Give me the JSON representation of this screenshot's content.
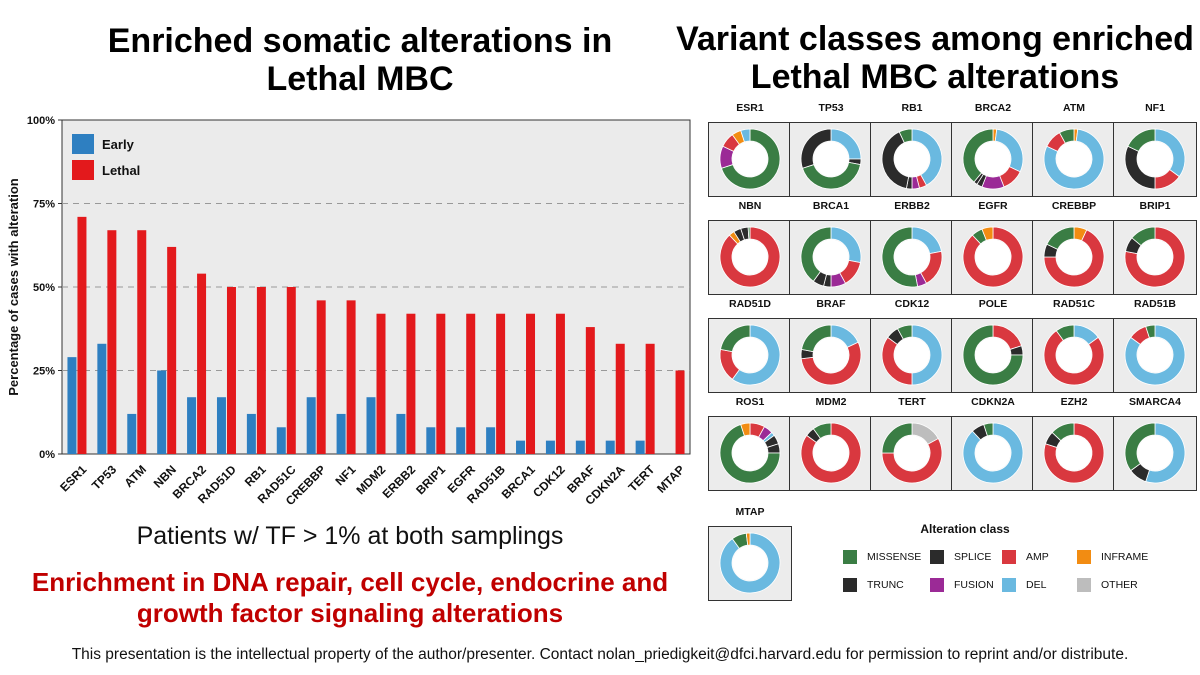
{
  "titles": {
    "left": "Enriched somatic alterations in Lethal MBC",
    "right": "Variant classes among enriched Lethal MBC alterations"
  },
  "subtitle": "Patients w/ TF > 1% at both samplings",
  "highlight": "Enrichment in DNA repair, cell cycle, endocrine and growth factor signaling alterations",
  "footer": "This presentation is the intellectual property of the author/presenter. Contact nolan_priedigkeit@dfci.harvard.edu for permission to reprint and/or distribute.",
  "colors": {
    "early": "#2e7fc1",
    "lethal": "#e3191c",
    "panel": "#ebebeb",
    "MISSENSE": "#3a7d44",
    "TRUNC": "#2b2b2b",
    "SPLICE": "#2b2b2b",
    "FUSION": "#9b2a96",
    "AMP": "#d9383f",
    "DEL": "#6ab9e0",
    "INFRAME": "#f28c12",
    "OTHER": "#bdbdbd"
  },
  "chart_data": [
    {
      "type": "bar",
      "title": "Enriched somatic alterations in Lethal MBC",
      "xlabel": "",
      "ylabel": "Percentage of cases with alteration",
      "ylim": [
        0,
        100
      ],
      "yticks": [
        "0%",
        "25%",
        "50%",
        "75%",
        "100%"
      ],
      "ytick_values": [
        0,
        25,
        50,
        75,
        100
      ],
      "grid": "dashed horizontal",
      "legend_position": "top-left",
      "categories": [
        "ESR1",
        "TP53",
        "ATM",
        "NBN",
        "BRCA2",
        "RAD51D",
        "RB1",
        "RAD51C",
        "CREBBP",
        "NF1",
        "MDM2",
        "ERBB2",
        "BRIP1",
        "EGFR",
        "RAD51B",
        "BRCA1",
        "CDK12",
        "BRAF",
        "CDKN2A",
        "TERT",
        "MTAP"
      ],
      "series": [
        {
          "name": "Early",
          "values": [
            29,
            33,
            12,
            25,
            17,
            17,
            12,
            8,
            17,
            12,
            17,
            12,
            8,
            8,
            8,
            4,
            4,
            4,
            4,
            4,
            0
          ]
        },
        {
          "name": "Lethal",
          "values": [
            71,
            67,
            67,
            62,
            54,
            50,
            50,
            50,
            46,
            46,
            42,
            42,
            42,
            42,
            42,
            42,
            42,
            38,
            33,
            33,
            25
          ]
        }
      ]
    },
    {
      "type": "pie",
      "title": "Variant classes among enriched Lethal MBC alterations",
      "legend_title": "Alteration class",
      "legend": [
        [
          "MISSENSE",
          "SPLICE",
          "AMP",
          "INFRAME"
        ],
        [
          "TRUNC",
          "FUSION",
          "DEL",
          "OTHER"
        ]
      ],
      "genes": [
        {
          "gene": "ESR1",
          "slices": [
            [
              "MISSENSE",
              0.7
            ],
            [
              "FUSION",
              0.12
            ],
            [
              "AMP",
              0.08
            ],
            [
              "INFRAME",
              0.05
            ],
            [
              "DEL",
              0.05
            ]
          ]
        },
        {
          "gene": "TP53",
          "slices": [
            [
              "DEL",
              0.25
            ],
            [
              "SPLICE",
              0.03
            ],
            [
              "MISSENSE",
              0.42
            ],
            [
              "TRUNC",
              0.3
            ]
          ]
        },
        {
          "gene": "RB1",
          "slices": [
            [
              "DEL",
              0.42
            ],
            [
              "AMP",
              0.04
            ],
            [
              "FUSION",
              0.04
            ],
            [
              "SPLICE",
              0.03
            ],
            [
              "TRUNC",
              0.4
            ],
            [
              "MISSENSE",
              0.07
            ]
          ]
        },
        {
          "gene": "BRCA2",
          "slices": [
            [
              "INFRAME",
              0.02
            ],
            [
              "DEL",
              0.3
            ],
            [
              "AMP",
              0.12
            ],
            [
              "FUSION",
              0.12
            ],
            [
              "SPLICE",
              0.03
            ],
            [
              "TRUNC",
              0.02
            ],
            [
              "MISSENSE",
              0.39
            ]
          ]
        },
        {
          "gene": "ATM",
          "slices": [
            [
              "INFRAME",
              0.02
            ],
            [
              "DEL",
              0.8
            ],
            [
              "AMP",
              0.1
            ],
            [
              "MISSENSE",
              0.08
            ]
          ]
        },
        {
          "gene": "NF1",
          "slices": [
            [
              "DEL",
              0.35
            ],
            [
              "AMP",
              0.15
            ],
            [
              "TRUNC",
              0.32
            ],
            [
              "MISSENSE",
              0.18
            ]
          ]
        },
        {
          "gene": "NBN",
          "slices": [
            [
              "AMP",
              0.88
            ],
            [
              "INFRAME",
              0.03
            ],
            [
              "SPLICE",
              0.04
            ],
            [
              "TRUNC",
              0.04
            ],
            [
              "MISSENSE",
              0.01
            ]
          ]
        },
        {
          "gene": "BRCA1",
          "slices": [
            [
              "DEL",
              0.28
            ],
            [
              "AMP",
              0.14
            ],
            [
              "FUSION",
              0.08
            ],
            [
              "SPLICE",
              0.04
            ],
            [
              "TRUNC",
              0.06
            ],
            [
              "MISSENSE",
              0.4
            ]
          ]
        },
        {
          "gene": "ERBB2",
          "slices": [
            [
              "DEL",
              0.22
            ],
            [
              "AMP",
              0.2
            ],
            [
              "FUSION",
              0.05
            ],
            [
              "MISSENSE",
              0.53
            ]
          ]
        },
        {
          "gene": "EGFR",
          "slices": [
            [
              "AMP",
              0.88
            ],
            [
              "MISSENSE",
              0.06
            ],
            [
              "INFRAME",
              0.06
            ]
          ]
        },
        {
          "gene": "CREBBP",
          "slices": [
            [
              "INFRAME",
              0.07
            ],
            [
              "AMP",
              0.68
            ],
            [
              "TRUNC",
              0.07
            ],
            [
              "MISSENSE",
              0.18
            ]
          ]
        },
        {
          "gene": "BRIP1",
          "slices": [
            [
              "AMP",
              0.78
            ],
            [
              "TRUNC",
              0.08
            ],
            [
              "MISSENSE",
              0.14
            ]
          ]
        },
        {
          "gene": "RAD51D",
          "slices": [
            [
              "DEL",
              0.6
            ],
            [
              "AMP",
              0.18
            ],
            [
              "MISSENSE",
              0.22
            ]
          ]
        },
        {
          "gene": "BRAF",
          "slices": [
            [
              "DEL",
              0.18
            ],
            [
              "AMP",
              0.55
            ],
            [
              "TRUNC",
              0.05
            ],
            [
              "MISSENSE",
              0.22
            ]
          ]
        },
        {
          "gene": "CDK12",
          "slices": [
            [
              "DEL",
              0.5
            ],
            [
              "AMP",
              0.35
            ],
            [
              "TRUNC",
              0.07
            ],
            [
              "MISSENSE",
              0.08
            ]
          ]
        },
        {
          "gene": "POLE",
          "slices": [
            [
              "AMP",
              0.2
            ],
            [
              "SPLICE",
              0.05
            ],
            [
              "MISSENSE",
              0.75
            ]
          ]
        },
        {
          "gene": "RAD51C",
          "slices": [
            [
              "DEL",
              0.15
            ],
            [
              "AMP",
              0.75
            ],
            [
              "MISSENSE",
              0.1
            ]
          ]
        },
        {
          "gene": "RAD51B",
          "slices": [
            [
              "DEL",
              0.85
            ],
            [
              "AMP",
              0.1
            ],
            [
              "MISSENSE",
              0.05
            ]
          ]
        },
        {
          "gene": "ROS1",
          "slices": [
            [
              "AMP",
              0.08
            ],
            [
              "FUSION",
              0.05
            ],
            [
              "DEL",
              0.02
            ],
            [
              "SPLICE",
              0.05
            ],
            [
              "TRUNC",
              0.05
            ],
            [
              "MISSENSE",
              0.7
            ],
            [
              "INFRAME",
              0.05
            ]
          ]
        },
        {
          "gene": "MDM2",
          "slices": [
            [
              "AMP",
              0.85
            ],
            [
              "TRUNC",
              0.05
            ],
            [
              "MISSENSE",
              0.1
            ]
          ]
        },
        {
          "gene": "TERT",
          "slices": [
            [
              "OTHER",
              0.17
            ],
            [
              "AMP",
              0.58
            ],
            [
              "MISSENSE",
              0.25
            ]
          ]
        },
        {
          "gene": "CDKN2A",
          "slices": [
            [
              "DEL",
              0.88
            ],
            [
              "TRUNC",
              0.07
            ],
            [
              "MISSENSE",
              0.05
            ]
          ]
        },
        {
          "gene": "EZH2",
          "slices": [
            [
              "AMP",
              0.8
            ],
            [
              "TRUNC",
              0.07
            ],
            [
              "MISSENSE",
              0.13
            ]
          ]
        },
        {
          "gene": "SMARCA4",
          "slices": [
            [
              "DEL",
              0.55
            ],
            [
              "TRUNC",
              0.1
            ],
            [
              "MISSENSE",
              0.35
            ]
          ]
        },
        {
          "gene": "MTAP",
          "slices": [
            [
              "DEL",
              0.9
            ],
            [
              "MISSENSE",
              0.08
            ],
            [
              "INFRAME",
              0.02
            ]
          ]
        }
      ]
    }
  ]
}
